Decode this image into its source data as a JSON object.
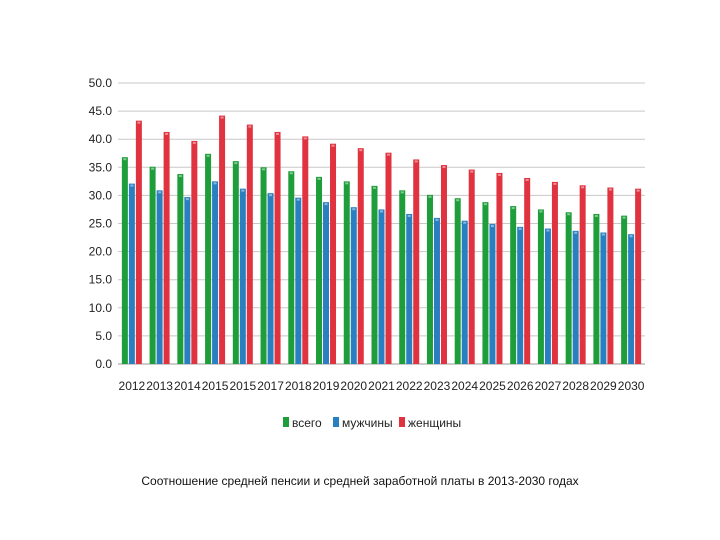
{
  "caption": "Соотношение средней пенсии и средней заработной платы в 2013-2030 годах",
  "chart_data": {
    "type": "bar",
    "categories": [
      "2012",
      "2013",
      "2014",
      "2015",
      "2015",
      "2017",
      "2018",
      "2019",
      "2020",
      "2021",
      "2022",
      "2023",
      "2024",
      "2025",
      "2026",
      "2027",
      "2028",
      "2029",
      "2030"
    ],
    "series": [
      {
        "name": "всего",
        "color": "#1e9e3a",
        "values": [
          36.8,
          35.1,
          33.8,
          37.4,
          36.1,
          35.0,
          34.3,
          33.3,
          32.5,
          31.7,
          30.9,
          30.1,
          29.5,
          28.8,
          28.1,
          27.5,
          27.0,
          26.7,
          26.4
        ]
      },
      {
        "name": "мужчины",
        "color": "#2a7fc0",
        "values": [
          32.1,
          30.9,
          29.7,
          32.5,
          31.2,
          30.4,
          29.6,
          28.8,
          27.9,
          27.5,
          26.7,
          26.0,
          25.5,
          24.9,
          24.4,
          24.1,
          23.7,
          23.4,
          23.1
        ]
      },
      {
        "name": "женщины",
        "color": "#e0323f",
        "values": [
          43.3,
          41.3,
          39.7,
          44.2,
          42.6,
          41.3,
          40.5,
          39.2,
          38.4,
          37.6,
          36.4,
          35.4,
          34.6,
          34.0,
          33.1,
          32.4,
          31.8,
          31.4,
          31.2
        ]
      }
    ],
    "ylim": [
      0,
      50
    ],
    "yticks": [
      "0.0",
      "5.0",
      "10.0",
      "15.0",
      "20.0",
      "25.0",
      "30.0",
      "35.0",
      "40.0",
      "45.0",
      "50.0"
    ],
    "grid": true,
    "legend": "bottom"
  }
}
